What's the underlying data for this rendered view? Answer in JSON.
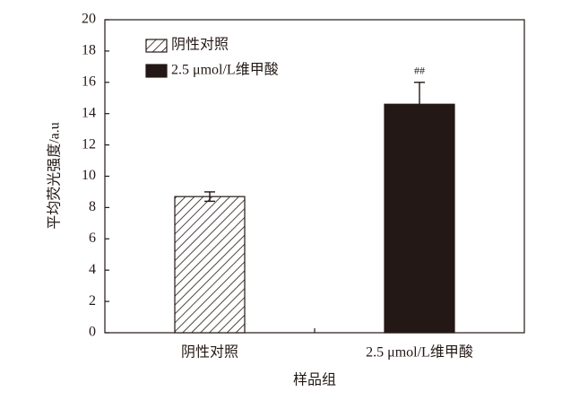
{
  "chart_data": {
    "type": "bar",
    "categories": [
      "阴性对照",
      "2.5 μmol/L维甲酸"
    ],
    "values": [
      8.7,
      14.6
    ],
    "errors": [
      0.3,
      1.4
    ],
    "colors": [
      "hatch",
      "#231815"
    ],
    "annotations": [
      "",
      "##"
    ],
    "xlabel": "样品组",
    "ylabel": "平均荧光强度/a.u",
    "ylim": [
      0,
      20
    ],
    "yticks": [
      0,
      2,
      4,
      6,
      8,
      10,
      12,
      14,
      16,
      18,
      20
    ],
    "legend": "upper left",
    "grid": false
  }
}
